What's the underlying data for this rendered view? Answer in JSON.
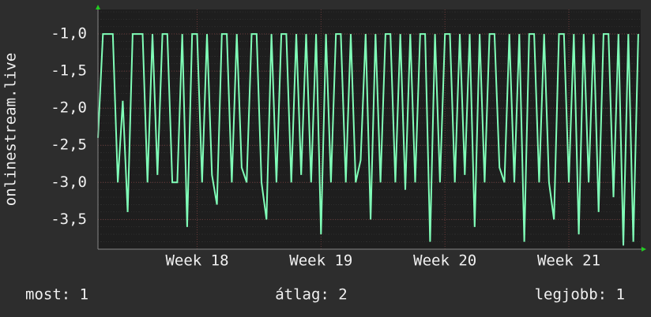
{
  "chart_data": {
    "type": "line",
    "ylabel": "onlinestream.live",
    "x": [
      17.2,
      17.24,
      17.28,
      17.32,
      17.36,
      17.4,
      17.44,
      17.48,
      17.52,
      17.56,
      17.6,
      17.64,
      17.68,
      17.72,
      17.76,
      17.8,
      17.84,
      17.88,
      17.92,
      17.96,
      18.0,
      18.04,
      18.08,
      18.12,
      18.16,
      18.2,
      18.24,
      18.28,
      18.32,
      18.36,
      18.4,
      18.44,
      18.48,
      18.52,
      18.56,
      18.6,
      18.64,
      18.68,
      18.72,
      18.76,
      18.8,
      18.84,
      18.88,
      18.92,
      18.96,
      19.0,
      19.04,
      19.08,
      19.12,
      19.16,
      19.2,
      19.24,
      19.28,
      19.32,
      19.36,
      19.4,
      19.44,
      19.48,
      19.52,
      19.56,
      19.6,
      19.64,
      19.68,
      19.72,
      19.76,
      19.8,
      19.84,
      19.88,
      19.92,
      19.96,
      20.0,
      20.04,
      20.08,
      20.12,
      20.16,
      20.2,
      20.24,
      20.28,
      20.32,
      20.36,
      20.4,
      20.44,
      20.48,
      20.52,
      20.56,
      20.6,
      20.64,
      20.68,
      20.72,
      20.76,
      20.8,
      20.84,
      20.88,
      20.92,
      20.96,
      21.0,
      21.04,
      21.08,
      21.12,
      21.16,
      21.2,
      21.24,
      21.28,
      21.32,
      21.36,
      21.4,
      21.44,
      21.48,
      21.52,
      21.56
    ],
    "values": [
      -2.4,
      -1,
      -1,
      -1,
      -3,
      -1.9,
      -3.4,
      -1,
      -1,
      -1,
      -3,
      -1,
      -2.9,
      -1,
      -1,
      -3,
      -3,
      -1,
      -3.6,
      -1,
      -1,
      -3,
      -1,
      -2.9,
      -3.3,
      -1,
      -1,
      -3,
      -1,
      -2.8,
      -3,
      -1,
      -1,
      -3,
      -3.5,
      -1,
      -3,
      -1,
      -1,
      -3,
      -1,
      -2.9,
      -1,
      -3,
      -1,
      -3.7,
      -1,
      -3,
      -1,
      -1,
      -3,
      -1,
      -3,
      -2.7,
      -1,
      -3.5,
      -1,
      -3,
      -1,
      -1,
      -3,
      -1,
      -3.1,
      -1,
      -3,
      -1,
      -1,
      -3.8,
      -1,
      -3,
      -1,
      -1,
      -3,
      -1,
      -2.9,
      -1,
      -3.6,
      -1,
      -3,
      -1,
      -1,
      -2.8,
      -3,
      -1,
      -3,
      -1,
      -3.8,
      -1,
      -1,
      -3,
      -1,
      -3,
      -3.5,
      -1,
      -1,
      -3,
      -1,
      -3.7,
      -1,
      -3,
      -1,
      -3.4,
      -1,
      -1,
      -3.2,
      -1,
      -3.85,
      -1,
      -3.8,
      -1
    ],
    "color": "#80ffb8",
    "xlim": [
      17.2,
      21.58
    ],
    "xticks": [
      {
        "value": 18,
        "label": "Week 18"
      },
      {
        "value": 19,
        "label": "Week 19"
      },
      {
        "value": 20,
        "label": "Week 20"
      },
      {
        "value": 21,
        "label": "Week 21"
      }
    ],
    "ylim": [
      -3.9,
      -0.67
    ],
    "yticks": [
      {
        "value": -1,
        "label": "-1,0"
      },
      {
        "value": -1.5,
        "label": "-1,5"
      },
      {
        "value": -2,
        "label": "-2,0"
      },
      {
        "value": -2.5,
        "label": "-2,5"
      },
      {
        "value": -3,
        "label": "-3,0"
      },
      {
        "value": -3.5,
        "label": "-3,5"
      }
    ],
    "grid": true
  },
  "footer": [
    "most: 1",
    "átlag: 2",
    "legjobb: 1"
  ]
}
